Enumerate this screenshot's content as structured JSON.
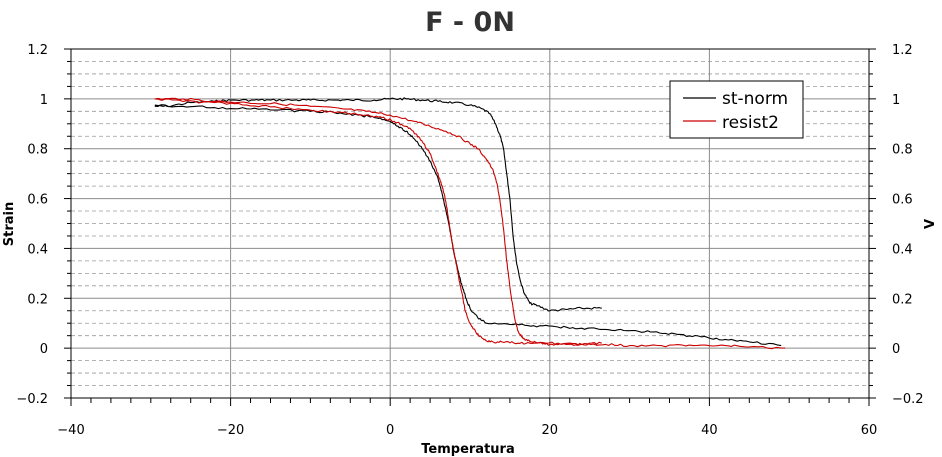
{
  "chart_data": {
    "type": "line",
    "title": "F - 0N",
    "xlabel": "Temperatura",
    "ylabel": "Strain",
    "y2label": "V",
    "xlim": [
      -40,
      60
    ],
    "ylim": [
      -0.2,
      1.2
    ],
    "y2lim": [
      -0.2,
      1.2
    ],
    "xticks": [
      -40,
      -20,
      0,
      20,
      40,
      60
    ],
    "xtick_labels": [
      "−40",
      "−20",
      "0",
      "20",
      "40",
      "60"
    ],
    "yticks": [
      -0.2,
      0,
      0.2,
      0.4,
      0.6,
      0.8,
      1,
      1.2
    ],
    "ytick_labels": [
      "−0.2",
      "0",
      "0.2",
      "0.4",
      "0.6",
      "0.8",
      "1",
      "1.2"
    ],
    "grid": true,
    "legend_position": "top-right",
    "series": [
      {
        "name": "st-norm",
        "color": "#000000",
        "x": [
          -29.5,
          -28,
          -25,
          -22,
          -20,
          -17,
          -15,
          -12,
          -10,
          -7,
          -5,
          -2,
          0,
          2,
          4,
          6,
          8,
          10,
          11.5,
          12.5,
          13.2,
          13.8,
          14.2,
          14.6,
          15,
          15.4,
          15.8,
          16.3,
          16.8,
          17.5,
          18.5,
          20,
          22,
          24,
          26.5,
          null,
          49,
          45,
          42,
          39,
          36,
          33,
          30,
          27,
          24,
          21,
          18,
          15,
          12,
          11,
          10,
          9.5,
          9,
          8.5,
          8,
          7.5,
          7,
          6.5,
          6,
          5,
          4,
          3,
          2,
          1,
          0,
          -2,
          -4,
          -7,
          -10,
          -14,
          -18,
          -22,
          -26,
          -29.5
        ],
        "y": [
          0.97,
          0.97,
          0.985,
          0.99,
          0.995,
          0.995,
          0.995,
          0.995,
          0.995,
          0.995,
          0.995,
          0.995,
          1.0,
          1.0,
          0.995,
          0.99,
          0.985,
          0.975,
          0.96,
          0.94,
          0.9,
          0.85,
          0.8,
          0.7,
          0.6,
          0.45,
          0.35,
          0.27,
          0.22,
          0.18,
          0.17,
          0.15,
          0.155,
          0.16,
          0.16,
          null,
          0.01,
          0.025,
          0.035,
          0.045,
          0.055,
          0.065,
          0.07,
          0.075,
          0.08,
          0.085,
          0.09,
          0.095,
          0.1,
          0.12,
          0.16,
          0.2,
          0.25,
          0.31,
          0.38,
          0.47,
          0.55,
          0.62,
          0.68,
          0.75,
          0.8,
          0.84,
          0.87,
          0.89,
          0.91,
          0.925,
          0.935,
          0.945,
          0.95,
          0.955,
          0.96,
          0.965,
          0.97,
          0.975
        ]
      },
      {
        "name": "resist2",
        "color": "#cc0000",
        "x": [
          -29.5,
          -26,
          -22,
          -18,
          -14,
          -10,
          -6,
          -3,
          0,
          3,
          5,
          7,
          8.5,
          10,
          11,
          12,
          12.8,
          13.4,
          13.8,
          14.2,
          14.6,
          15.1,
          15.6,
          16,
          16.6,
          17.2,
          18,
          19,
          20,
          22,
          24,
          26.5,
          null,
          49.5,
          45,
          42,
          38,
          34,
          30,
          27,
          24,
          21,
          18,
          16,
          14,
          12.5,
          11.5,
          10.8,
          10,
          9.4,
          9,
          8.6,
          8.2,
          7.8,
          7.4,
          7,
          6.6,
          6.2,
          5.6,
          5,
          4.2,
          3.2,
          2,
          0.5,
          -1,
          -3,
          -6,
          -10,
          -14,
          -18,
          -22,
          -26,
          -29.5
        ],
        "y": [
          1.0,
          1.0,
          0.99,
          0.985,
          0.98,
          0.97,
          0.96,
          0.95,
          0.935,
          0.91,
          0.89,
          0.87,
          0.85,
          0.82,
          0.8,
          0.76,
          0.72,
          0.66,
          0.58,
          0.48,
          0.35,
          0.22,
          0.12,
          0.07,
          0.04,
          0.03,
          0.025,
          0.02,
          0.015,
          0.015,
          0.015,
          0.02,
          null,
          0.0,
          0.005,
          0.01,
          0.01,
          0.01,
          0.01,
          0.015,
          0.015,
          0.02,
          0.02,
          0.02,
          0.025,
          0.025,
          0.04,
          0.06,
          0.1,
          0.15,
          0.22,
          0.28,
          0.35,
          0.42,
          0.5,
          0.58,
          0.64,
          0.68,
          0.73,
          0.78,
          0.82,
          0.86,
          0.89,
          0.91,
          0.925,
          0.935,
          0.945,
          0.955,
          0.965,
          0.975,
          0.985,
          0.99,
          1.0
        ]
      }
    ]
  }
}
